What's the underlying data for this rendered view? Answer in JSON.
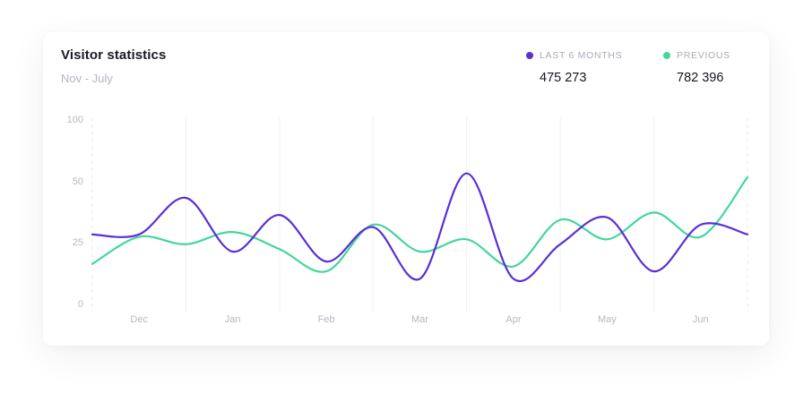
{
  "header": {
    "title": "Visitor statistics",
    "subtitle": "Nov - July"
  },
  "legend": [
    {
      "label": "LAST 6 MONTHS",
      "value": "475 273",
      "color": "#5a2fd8"
    },
    {
      "label": "PREVIOUS",
      "value": "782 396",
      "color": "#43d69b"
    }
  ],
  "chart_data": {
    "type": "line",
    "x": [
      "Dec",
      "Jan",
      "Feb",
      "Mar",
      "Apr",
      "May",
      "Jun"
    ],
    "ytick_labels": [
      "100",
      "50",
      "25",
      "0"
    ],
    "grid": true,
    "series": [
      {
        "name": "LAST 6 MONTHS",
        "color": "#5a2fd8",
        "points": [
          [
            0,
            28
          ],
          [
            0.5,
            28
          ],
          [
            1,
            43
          ],
          [
            1.5,
            21
          ],
          [
            2,
            36
          ],
          [
            2.5,
            17
          ],
          [
            3,
            31
          ],
          [
            3.5,
            10
          ],
          [
            4,
            56
          ],
          [
            4.5,
            10
          ],
          [
            5,
            24
          ],
          [
            5.5,
            35
          ],
          [
            6,
            13
          ],
          [
            6.5,
            32
          ],
          [
            7,
            28
          ]
        ]
      },
      {
        "name": "PREVIOUS",
        "color": "#43d69b",
        "points": [
          [
            0,
            16
          ],
          [
            0.5,
            27
          ],
          [
            1,
            24
          ],
          [
            1.5,
            29
          ],
          [
            2,
            22
          ],
          [
            2.5,
            13
          ],
          [
            3,
            32
          ],
          [
            3.5,
            21
          ],
          [
            4,
            26
          ],
          [
            4.5,
            15
          ],
          [
            5,
            34
          ],
          [
            5.5,
            26
          ],
          [
            6,
            37
          ],
          [
            6.5,
            27
          ],
          [
            7,
            53
          ]
        ]
      }
    ]
  }
}
